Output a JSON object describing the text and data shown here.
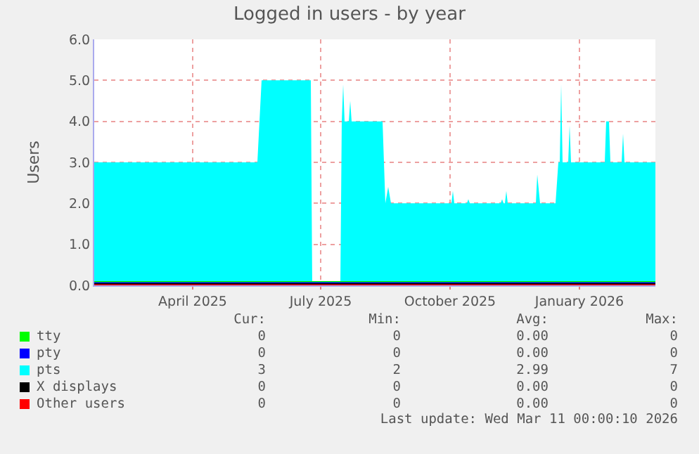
{
  "chart_data": {
    "type": "area",
    "title": "Logged in users - by year",
    "ylabel": "Users",
    "xlim": [
      "2025-01-21",
      "2026-02-24"
    ],
    "xticks": [
      {
        "value": "2025-04-01",
        "label": "April 2025"
      },
      {
        "value": "2025-07-01",
        "label": "July 2025"
      },
      {
        "value": "2025-10-01",
        "label": "October 2025"
      },
      {
        "value": "2026-01-01",
        "label": "January 2026"
      }
    ],
    "ylim": [
      0,
      6
    ],
    "yticks": [
      {
        "value": 0,
        "label": "0.0"
      },
      {
        "value": 1,
        "label": "1.0"
      },
      {
        "value": 2,
        "label": "2.0"
      },
      {
        "value": 3,
        "label": "3.0"
      },
      {
        "value": 4,
        "label": "4.0"
      },
      {
        "value": 5,
        "label": "5.0"
      },
      {
        "value": 6,
        "label": "6.0"
      }
    ],
    "grid": true,
    "legend": "bottom",
    "series": [
      {
        "name": "tty",
        "type": "line",
        "color": "#00ff00",
        "x": [
          "2025-01-21",
          "2026-02-24"
        ],
        "values": [
          0,
          0
        ]
      },
      {
        "name": "pty",
        "type": "line",
        "color": "#0000ff",
        "x": [
          "2025-01-21",
          "2026-02-24"
        ],
        "values": [
          0,
          0
        ]
      },
      {
        "name": "pts",
        "color": "#00ffff",
        "x": [
          "2025-01-21",
          "2025-05-17",
          "2025-05-20",
          "2025-06-24",
          "2025-06-25",
          "2025-07-15",
          "2025-07-16",
          "2025-07-17",
          "2025-07-18",
          "2025-07-21",
          "2025-07-22",
          "2025-07-23",
          "2025-08-14",
          "2025-08-16",
          "2025-08-18",
          "2025-08-20",
          "2025-10-02",
          "2025-10-03",
          "2025-10-04",
          "2025-10-13",
          "2025-10-14",
          "2025-10-15",
          "2025-11-06",
          "2025-11-07",
          "2025-11-08",
          "2025-11-09",
          "2025-11-10",
          "2025-11-11",
          "2025-12-01",
          "2025-12-02",
          "2025-12-04",
          "2025-12-15",
          "2025-12-17",
          "2025-12-18",
          "2025-12-19",
          "2025-12-20",
          "2025-12-24",
          "2025-12-25",
          "2025-12-26",
          "2026-01-19",
          "2026-01-20",
          "2026-01-22",
          "2026-01-23",
          "2026-01-31",
          "2026-02-01",
          "2026-02-02",
          "2026-02-24"
        ],
        "values": [
          3,
          3,
          5,
          5,
          null,
          null,
          4,
          4.9,
          4,
          4,
          4.5,
          4,
          4,
          2,
          2.4,
          2,
          2,
          2.3,
          2,
          2,
          2.1,
          2,
          2,
          2.1,
          2,
          2,
          2.3,
          2,
          2,
          2.7,
          2,
          2,
          3,
          3,
          4.9,
          3,
          3,
          3.9,
          3,
          3,
          4,
          4,
          3,
          3,
          3.7,
          3,
          3
        ]
      },
      {
        "name": "X displays",
        "type": "line",
        "color": "#000000",
        "x": [
          "2025-01-21",
          "2026-02-24"
        ],
        "values": [
          0,
          0
        ]
      },
      {
        "name": "Other users",
        "type": "line",
        "color": "#ff0000",
        "x": [
          "2025-01-21",
          "2026-02-24"
        ],
        "values": [
          0,
          0
        ]
      }
    ],
    "annotations": [
      "Cur:",
      "Min:",
      "Avg:",
      "Max:",
      "0",
      "0",
      "0.00",
      "0",
      "0",
      "0",
      "0.00",
      "0",
      "3",
      "2",
      "2.99",
      "7",
      "0",
      "0",
      "0.00",
      "0",
      "0",
      "0",
      "0.00",
      "0",
      "Last update: Wed Mar 11 00:00:10 2026"
    ]
  }
}
